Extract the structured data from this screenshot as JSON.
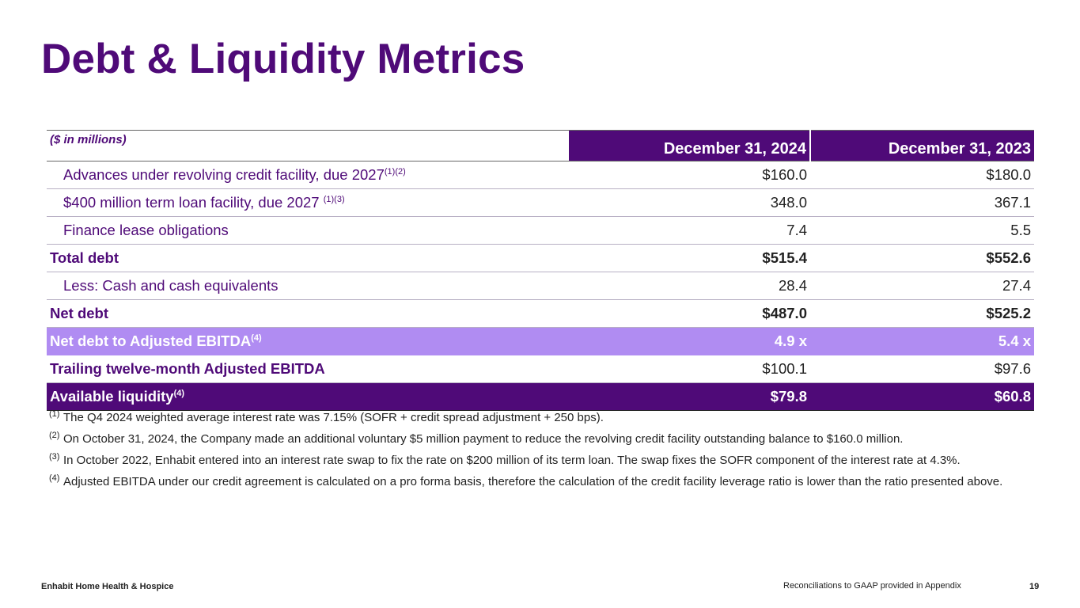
{
  "title": "Debt & Liquidity Metrics",
  "table": {
    "unit_label": "($ in millions)",
    "columns": [
      "December 31, 2024",
      "December 31, 2023"
    ],
    "rows": [
      {
        "label": "Advances under revolving credit facility, due 2027",
        "sup": "(1)(2)",
        "v2024": "$160.0",
        "v2023": "$180.0"
      },
      {
        "label": "$400 million term loan facility, due 2027 ",
        "sup": "(1)(3)",
        "v2024": "348.0",
        "v2023": "367.1"
      },
      {
        "label": "Finance lease obligations",
        "sup": "",
        "v2024": "7.4",
        "v2023": "5.5"
      },
      {
        "label": "Total debt",
        "sup": "",
        "v2024": "$515.4",
        "v2023": "$552.6"
      },
      {
        "label": "Less: Cash and cash equivalents",
        "sup": "",
        "v2024": "28.4",
        "v2023": "27.4"
      },
      {
        "label": "Net debt",
        "sup": "",
        "v2024": "$487.0",
        "v2023": "$525.2"
      },
      {
        "label": "Net debt to Adjusted EBITDA",
        "sup": "(4)",
        "v2024": "4.9 x",
        "v2023": "5.4 x"
      },
      {
        "label": "Trailing twelve-month Adjusted EBITDA",
        "sup": "",
        "v2024": "$100.1",
        "v2023": "$97.6"
      },
      {
        "label": "Available liquidity",
        "sup": "(4)",
        "v2024": "$79.8",
        "v2023": "$60.8"
      }
    ]
  },
  "footnotes": [
    {
      "marker": "(1)",
      "text": "The Q4 2024 weighted average interest rate was 7.15% (SOFR + credit spread adjustment + 250 bps)."
    },
    {
      "marker": "(2)",
      "text": "On October 31, 2024, the Company made an additional voluntary $5 million payment to reduce the revolving credit facility outstanding balance to $160.0 million."
    },
    {
      "marker": "(3)",
      "text": "In October 2022, Enhabit entered into an interest rate swap to fix the rate on $200 million of its term loan. The swap fixes the SOFR component of the interest rate at 4.3%."
    },
    {
      "marker": "(4)",
      "text": "Adjusted EBITDA under our credit agreement is calculated on a pro forma basis, therefore the calculation of the credit facility leverage ratio is lower than the ratio presented above."
    }
  ],
  "footer": {
    "company": "Enhabit Home Health & Hospice",
    "reconciliation_note": "Reconciliations to GAAP provided in Appendix",
    "page_number": "19"
  },
  "colors": {
    "brand_purple": "#4f0a78",
    "highlight_lavender": "#b08cf2"
  }
}
